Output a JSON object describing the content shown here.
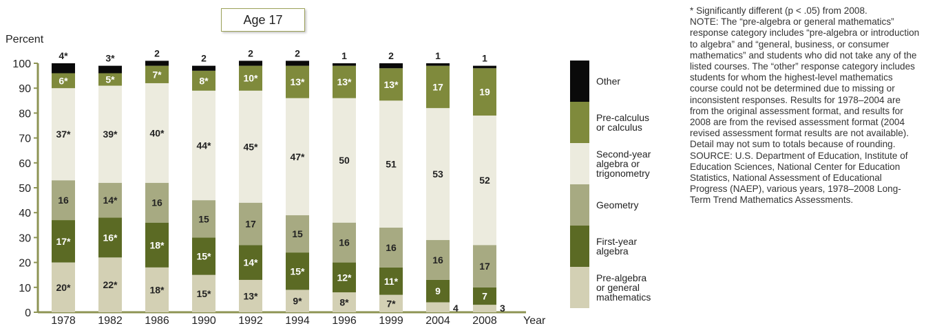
{
  "chart_data": {
    "type": "bar",
    "stacked": true,
    "title": "Age 17",
    "ylabel": "Percent",
    "xlabel": "Year",
    "ylim": [
      0,
      100
    ],
    "yticks": [
      0,
      10,
      20,
      30,
      40,
      50,
      60,
      70,
      80,
      90,
      100
    ],
    "categories": [
      "1978",
      "1982",
      "1986",
      "1990",
      "1992",
      "1994",
      "1996",
      "1999",
      "2004",
      "2008"
    ],
    "series": [
      {
        "name": "Pre-algebra or general mathematics",
        "color": "#d3d0b4",
        "values": [
          20,
          22,
          18,
          15,
          13,
          9,
          8,
          7,
          4,
          3
        ],
        "labels": [
          "20*",
          "22*",
          "18*",
          "15*",
          "13*",
          "9*",
          "8*",
          "7*",
          "4",
          "3"
        ]
      },
      {
        "name": "First-year algebra",
        "color": "#5b6a24",
        "values": [
          17,
          16,
          18,
          15,
          14,
          15,
          12,
          11,
          9,
          7
        ],
        "labels": [
          "17*",
          "16*",
          "18*",
          "15*",
          "14*",
          "15*",
          "12*",
          "11*",
          "9",
          "7"
        ]
      },
      {
        "name": "Geometry",
        "color": "#a7aa82",
        "values": [
          16,
          14,
          16,
          15,
          17,
          15,
          16,
          16,
          16,
          17
        ],
        "labels": [
          "16",
          "14*",
          "16",
          "15",
          "17",
          "15",
          "16",
          "16",
          "16",
          "17"
        ]
      },
      {
        "name": "Second-year algebra or trigonometry",
        "color": "#ecebde",
        "values": [
          37,
          39,
          40,
          44,
          45,
          47,
          50,
          51,
          53,
          52
        ],
        "labels": [
          "37*",
          "39*",
          "40*",
          "44*",
          "45*",
          "47*",
          "50",
          "51",
          "53",
          "52"
        ]
      },
      {
        "name": "Pre-calculus or calculus",
        "color": "#7f8a3c",
        "values": [
          6,
          5,
          7,
          8,
          10,
          13,
          13,
          13,
          17,
          19
        ],
        "labels": [
          "6*",
          "5*",
          "7*",
          "8*",
          "10*",
          "13*",
          "13*",
          "13*",
          "17",
          "19"
        ]
      },
      {
        "name": "Other",
        "color": "#0a0a0a",
        "values": [
          4,
          3,
          2,
          2,
          2,
          2,
          1,
          2,
          1,
          1
        ],
        "labels": [
          "4*",
          "3*",
          "2",
          "2",
          "2",
          "2",
          "1",
          "2",
          "1",
          "1"
        ]
      }
    ],
    "legend_position": "right",
    "grid": false
  },
  "legend": [
    {
      "lines": [
        "Other"
      ]
    },
    {
      "lines": [
        "Pre-calculus",
        "or calculus"
      ]
    },
    {
      "lines": [
        "Second-year",
        "algebra or",
        "trigonometry"
      ]
    },
    {
      "lines": [
        "Geometry"
      ]
    },
    {
      "lines": [
        "First-year",
        "algebra"
      ]
    },
    {
      "lines": [
        "Pre-algebra",
        "or general",
        "mathematics"
      ]
    }
  ],
  "notes": [
    "* Significantly different (p < .05) from 2008.",
    "NOTE: The “pre-algebra or general mathematics” response category includes “pre-algebra or introduction to algebra” and “general, business, or consumer mathematics” and students who did not take any of the listed courses. The “other” response category includes students for whom the highest-level mathematics course could not be determined due to missing or inconsistent responses. Results for 1978–2004 are from the original assessment format, and results for 2008 are from the revised assessment format (2004 revised assessment format results are not available). Detail may not sum to totals because of rounding.",
    "SOURCE: U.S. Department of Education, Institute of Education Sciences, National Center for Education Statistics, National Assessment of Educational Progress (NAEP), various years, 1978–2008 Long-Term Trend Mathematics Assessments."
  ]
}
